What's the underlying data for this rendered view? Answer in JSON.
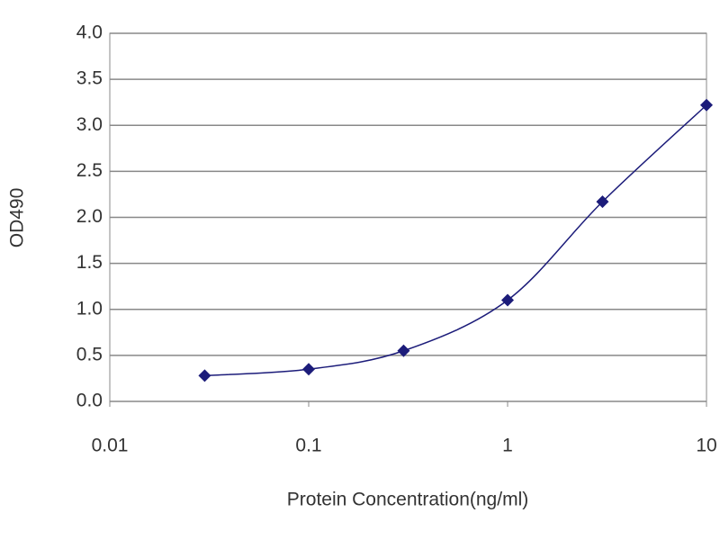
{
  "chart_data": {
    "type": "line",
    "x_label": "Protein Concentration(ng/ml)",
    "y_label": "OD490",
    "x_scale": "log",
    "x": [
      0.03,
      0.1,
      0.3,
      1,
      3,
      10
    ],
    "series": [
      {
        "color": "#1c1c7a",
        "values": [
          0.28,
          0.35,
          0.55,
          1.1,
          2.17,
          3.22
        ]
      }
    ],
    "xlim": [
      0.01,
      10
    ],
    "xticks": [
      0.01,
      0.1,
      1,
      10
    ],
    "ylim": [
      0,
      4
    ],
    "yticks": [
      {
        "value": 0,
        "label": "0.0"
      },
      {
        "value": 0.5,
        "label": "0.5"
      },
      {
        "value": 1,
        "label": "1.0"
      },
      {
        "value": 1.5,
        "label": "1.5"
      },
      {
        "value": 2,
        "label": "2.0"
      },
      {
        "value": 2.5,
        "label": "2.5"
      },
      {
        "value": 3,
        "label": "3.0"
      },
      {
        "value": 3.5,
        "label": "3.5"
      },
      {
        "value": 4,
        "label": "4.0"
      }
    ],
    "grid": true
  }
}
